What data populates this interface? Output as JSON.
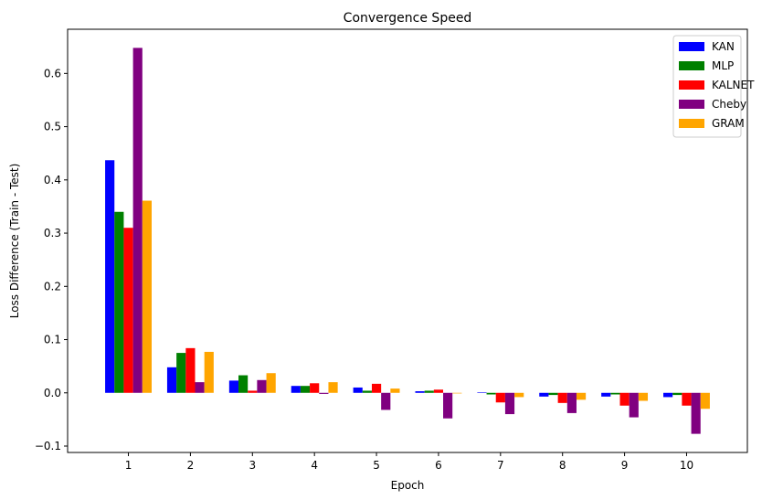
{
  "chart_data": {
    "type": "bar",
    "title": "Convergence Speed",
    "xlabel": "Epoch",
    "ylabel": "Loss Difference (Train - Test)",
    "categories": [
      "1",
      "2",
      "3",
      "4",
      "5",
      "6",
      "7",
      "8",
      "9",
      "10"
    ],
    "ylim": [
      -0.112,
      0.683
    ],
    "yticks": [
      -0.1,
      0.0,
      0.1,
      0.2,
      0.3,
      0.4,
      0.5,
      0.6
    ],
    "ytick_labels": [
      "−0.1",
      "0.0",
      "0.1",
      "0.2",
      "0.3",
      "0.4",
      "0.5",
      "0.6"
    ],
    "grid": false,
    "legend_position": "top-right",
    "series": [
      {
        "name": "KAN",
        "color": "#0000ff",
        "values": [
          0.437,
          0.048,
          0.023,
          0.013,
          0.01,
          0.003,
          0.001,
          -0.007,
          -0.007,
          -0.008
        ]
      },
      {
        "name": "MLP",
        "color": "#008000",
        "values": [
          0.34,
          0.075,
          0.033,
          0.013,
          0.004,
          0.004,
          -0.003,
          -0.004,
          -0.003,
          -0.004
        ]
      },
      {
        "name": "KALNET",
        "color": "#ff0000",
        "values": [
          0.31,
          0.084,
          0.004,
          0.018,
          0.017,
          0.006,
          -0.018,
          -0.019,
          -0.024,
          -0.024
        ]
      },
      {
        "name": "Cheby",
        "color": "#800080",
        "values": [
          0.648,
          0.02,
          0.024,
          -0.002,
          -0.032,
          -0.048,
          -0.04,
          -0.038,
          -0.046,
          -0.077
        ]
      },
      {
        "name": "GRAM",
        "color": "#ffa500",
        "values": [
          0.361,
          0.077,
          0.037,
          0.02,
          0.008,
          0.0,
          -0.008,
          -0.013,
          -0.015,
          -0.03
        ]
      }
    ]
  }
}
